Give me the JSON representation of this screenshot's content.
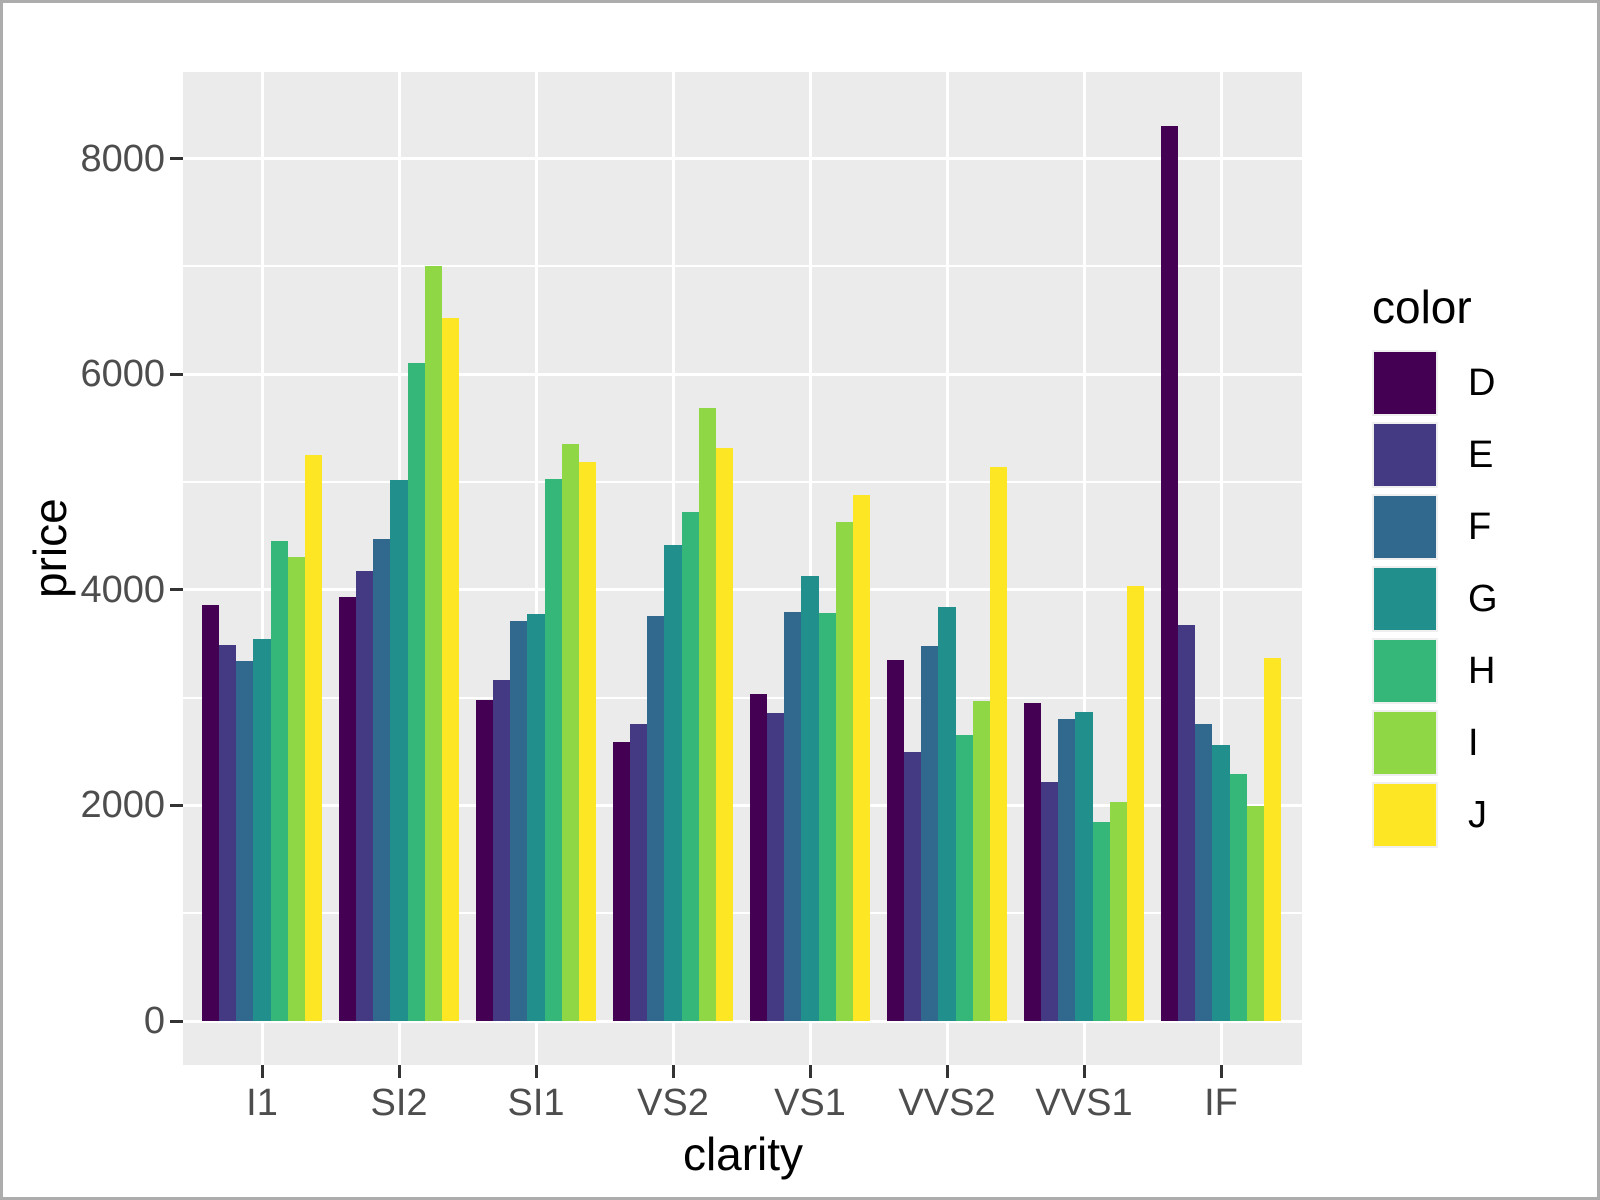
{
  "chart_data": {
    "type": "bar",
    "title": "",
    "xlabel": "clarity",
    "ylabel": "price",
    "legend_title": "color",
    "legend_position": "right",
    "grid": true,
    "panel_bg": "#EBEBEB",
    "gridline_color": "#FFFFFF",
    "axis_text_color": "#4D4D4D",
    "tick_color": "#333333",
    "categories": [
      "I1",
      "SI2",
      "SI1",
      "VS2",
      "VS1",
      "VVS2",
      "VVS1",
      "IF"
    ],
    "y_ticks": [
      0,
      2000,
      4000,
      6000,
      8000
    ],
    "y_minor_ticks": [
      1000,
      3000,
      5000,
      7000
    ],
    "ylim": [
      0,
      8800
    ],
    "series": [
      {
        "name": "D",
        "color": "#440154",
        "values": [
          3863,
          3931,
          2976,
          2587,
          3030,
          3351,
          2948,
          8307
        ]
      },
      {
        "name": "E",
        "color": "#443A83",
        "values": [
          3488,
          4174,
          3162,
          2751,
          2856,
          2500,
          2220,
          3669
        ]
      },
      {
        "name": "F",
        "color": "#31688E",
        "values": [
          3342,
          4473,
          3714,
          3757,
          3797,
          3476,
          2804,
          2751
        ]
      },
      {
        "name": "G",
        "color": "#21908C",
        "values": [
          3546,
          5022,
          3775,
          4416,
          4131,
          3845,
          2867,
          2558
        ]
      },
      {
        "name": "H",
        "color": "#35B779",
        "values": [
          4453,
          6100,
          5032,
          4722,
          3781,
          2649,
          1846,
          2288
        ]
      },
      {
        "name": "I",
        "color": "#8FD744",
        "values": [
          4302,
          7003,
          5355,
          5691,
          4633,
          2968,
          2035,
          1995
        ]
      },
      {
        "name": "J",
        "color": "#FDE725",
        "values": [
          5254,
          6521,
          5186,
          5311,
          4884,
          5142,
          4034,
          3364
        ]
      }
    ]
  }
}
